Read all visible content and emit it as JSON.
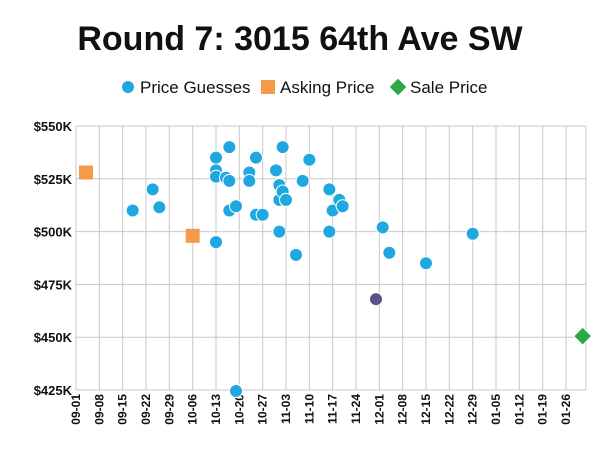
{
  "chart_data": {
    "type": "scatter",
    "title": "Round 7: 3015 64th Ave SW",
    "legend_position": "top",
    "grid": true,
    "x_axis": {
      "type": "date",
      "range": [
        "2013-09-01",
        "2014-02-01"
      ],
      "tick_labels": [
        "09-01",
        "09-08",
        "09-15",
        "09-22",
        "09-29",
        "10-06",
        "10-13",
        "10-20",
        "10-27",
        "11-03",
        "11-10",
        "11-17",
        "11-24",
        "12-01",
        "12-08",
        "12-15",
        "12-22",
        "12-29",
        "01-05",
        "01-12",
        "01-19",
        "01-26"
      ],
      "tick_dates": [
        "2013-09-01",
        "2013-09-08",
        "2013-09-15",
        "2013-09-22",
        "2013-09-29",
        "2013-10-06",
        "2013-10-13",
        "2013-10-20",
        "2013-10-27",
        "2013-11-03",
        "2013-11-10",
        "2013-11-17",
        "2013-11-24",
        "2013-12-01",
        "2013-12-08",
        "2013-12-15",
        "2013-12-22",
        "2013-12-29",
        "2014-01-05",
        "2014-01-12",
        "2014-01-19",
        "2014-01-26"
      ]
    },
    "y_axis": {
      "range": [
        425000,
        550000
      ],
      "tick_values": [
        425000,
        450000,
        475000,
        500000,
        525000,
        550000
      ],
      "tick_labels": [
        "$425K",
        "$450K",
        "$475K",
        "$500K",
        "$525K",
        "$550K"
      ]
    },
    "series": [
      {
        "name": "Price Guesses",
        "marker": "circle",
        "color": "#1fa8e0",
        "points": [
          {
            "x": "2013-09-18",
            "y": 510000
          },
          {
            "x": "2013-09-24",
            "y": 520000
          },
          {
            "x": "2013-09-26",
            "y": 511500
          },
          {
            "x": "2013-10-13",
            "y": 535000
          },
          {
            "x": "2013-10-13",
            "y": 529000
          },
          {
            "x": "2013-10-13",
            "y": 526000
          },
          {
            "x": "2013-10-13",
            "y": 495000
          },
          {
            "x": "2013-10-16",
            "y": 525500
          },
          {
            "x": "2013-10-17",
            "y": 540000
          },
          {
            "x": "2013-10-17",
            "y": 524000
          },
          {
            "x": "2013-10-17",
            "y": 510000
          },
          {
            "x": "2013-10-19",
            "y": 512000
          },
          {
            "x": "2013-10-19",
            "y": 424500
          },
          {
            "x": "2013-10-23",
            "y": 528000
          },
          {
            "x": "2013-10-23",
            "y": 524000
          },
          {
            "x": "2013-10-25",
            "y": 535000
          },
          {
            "x": "2013-10-25",
            "y": 508000
          },
          {
            "x": "2013-10-27",
            "y": 508000
          },
          {
            "x": "2013-10-31",
            "y": 529000
          },
          {
            "x": "2013-11-01",
            "y": 522000
          },
          {
            "x": "2013-11-01",
            "y": 515000
          },
          {
            "x": "2013-11-01",
            "y": 500000
          },
          {
            "x": "2013-11-02",
            "y": 540000
          },
          {
            "x": "2013-11-02",
            "y": 519000
          },
          {
            "x": "2013-11-03",
            "y": 515000
          },
          {
            "x": "2013-11-03",
            "y": 515000
          },
          {
            "x": "2013-11-06",
            "y": 489000
          },
          {
            "x": "2013-11-08",
            "y": 524000
          },
          {
            "x": "2013-11-10",
            "y": 534000
          },
          {
            "x": "2013-11-16",
            "y": 520000
          },
          {
            "x": "2013-11-16",
            "y": 500000
          },
          {
            "x": "2013-11-17",
            "y": 510000
          },
          {
            "x": "2013-11-19",
            "y": 515000
          },
          {
            "x": "2013-11-20",
            "y": 512000
          },
          {
            "x": "2013-12-02",
            "y": 502000
          },
          {
            "x": "2013-12-04",
            "y": 490000
          },
          {
            "x": "2013-12-15",
            "y": 485000
          },
          {
            "x": "2013-12-29",
            "y": 499000
          }
        ]
      },
      {
        "name": "Asking Price",
        "marker": "square",
        "color": "#f59a4a",
        "points": [
          {
            "x": "2013-09-04",
            "y": 528000
          },
          {
            "x": "2013-10-06",
            "y": 498000
          }
        ]
      },
      {
        "name": "Sale Price",
        "marker": "diamond",
        "color": "#2aa84a",
        "points": [
          {
            "x": "2014-01-31",
            "y": 450500
          }
        ]
      },
      {
        "marker": "circle",
        "color": "#5b5088",
        "points": [
          {
            "x": "2013-11-30",
            "y": 468000
          }
        ]
      }
    ]
  }
}
